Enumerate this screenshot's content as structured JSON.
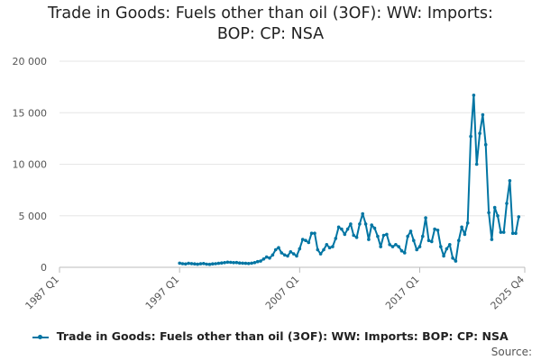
{
  "chart_data": {
    "type": "line",
    "title_lines": [
      "Trade in Goods: Fuels other than oil (3OF): WW: Imports:",
      "BOP: CP: NSA"
    ],
    "xlabel": "",
    "ylabel": "",
    "ylim": [
      0,
      20000
    ],
    "yticks": [
      0,
      5000,
      10000,
      15000,
      20000
    ],
    "ytick_labels": [
      "0",
      "5 000",
      "10 000",
      "15 000",
      "20 000"
    ],
    "xlim": [
      "1987 Q1",
      "2025 Q4"
    ],
    "xticks": [
      "1987 Q1",
      "1997 Q1",
      "2007 Q1",
      "2017 Q1",
      "2025 Q4"
    ],
    "grid": "horizontal",
    "legend_position": "bottom",
    "series": [
      {
        "name": "Trade in Goods: Fuels other than oil (3OF): WW: Imports: BOP: CP: NSA",
        "color": "#0075a3",
        "start": "1997 Q1",
        "values": [
          400,
          350,
          320,
          380,
          360,
          330,
          300,
          340,
          370,
          310,
          290,
          330,
          350,
          380,
          420,
          450,
          500,
          480,
          450,
          460,
          420,
          400,
          380,
          370,
          400,
          450,
          550,
          600,
          800,
          1000,
          900,
          1200,
          1700,
          1900,
          1400,
          1200,
          1100,
          1500,
          1300,
          1100,
          1800,
          2700,
          2600,
          2400,
          3300,
          3300,
          1700,
          1300,
          1700,
          2200,
          1900,
          2000,
          2800,
          3900,
          3700,
          3200,
          3700,
          4200,
          3100,
          2900,
          4200,
          5200,
          4200,
          2700,
          4100,
          3800,
          3000,
          2000,
          3100,
          3200,
          2200,
          2000,
          2200,
          2000,
          1600,
          1400,
          3000,
          3500,
          2600,
          1700,
          2000,
          3000,
          4800,
          2600,
          2500,
          3700,
          3600,
          2000,
          1100,
          1800,
          2200,
          900,
          600,
          2600,
          3900,
          3200,
          4300,
          12700,
          16700,
          10000,
          13000,
          14800,
          11900,
          5300,
          2700,
          5800,
          5000,
          3400,
          3400,
          6200,
          8400,
          3300,
          3300,
          4900
        ]
      }
    ]
  },
  "legend_label": "Trade in Goods: Fuels other than oil (3OF): WW: Imports: BOP: CP: NSA",
  "source_label": "Source:"
}
